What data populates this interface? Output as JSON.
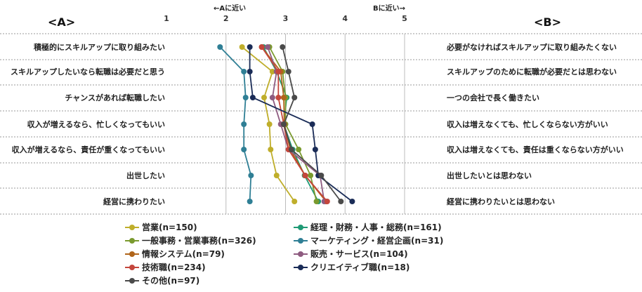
{
  "chart_data": {
    "type": "line",
    "left_header": "<A>",
    "right_header": "<B>",
    "direction_a": "←Aに近い",
    "direction_b": "Bに近い→",
    "xlim": [
      1,
      5
    ],
    "x_ticks": [
      "1",
      "2",
      "3",
      "4",
      "5"
    ],
    "left_labels": [
      "積極的にスキルアップに取り組みたい",
      "スキルアップしたいなら転職は必要だと思う",
      "チャンスがあれば転職したい",
      "収入が増えるなら、忙しくなってもいい",
      "収入が増えるなら、責任が重くなってもいい",
      "出世したい",
      "経営に携わりたい"
    ],
    "right_labels": [
      "必要がなければスキルアップに取り組みたくない",
      "スキルアップのために転職が必要だとは思わない",
      "一つの会社で長く働きたい",
      "収入は増えなくても、忙しくならない方がいい",
      "収入は増えなくても、責任は重くならない方がいい",
      "出世したいとは思わない",
      "経営に携わりたいとは思わない"
    ],
    "series": [
      {
        "name": "営業(n=150)",
        "color": "#bfae2b",
        "values": [
          2.27,
          2.78,
          2.64,
          2.73,
          2.75,
          2.85,
          3.15
        ]
      },
      {
        "name": "経理・財務・人事・総務(n=161)",
        "color": "#1f9a75",
        "values": [
          2.63,
          2.85,
          3.02,
          2.97,
          3.12,
          3.32,
          3.55
        ]
      },
      {
        "name": "一般事務・営業事務(n=326)",
        "color": "#7a9a2e",
        "values": [
          2.73,
          2.95,
          3.0,
          3.0,
          3.22,
          3.42,
          3.52
        ]
      },
      {
        "name": "マーケティング・経営企画(n=31)",
        "color": "#2f7f95",
        "values": [
          1.9,
          2.3,
          2.33,
          2.3,
          2.3,
          2.42,
          2.4
        ]
      },
      {
        "name": "情報システム(n=79)",
        "color": "#b0651a",
        "values": [
          2.6,
          2.92,
          2.97,
          2.98,
          3.08,
          3.33,
          3.68
        ]
      },
      {
        "name": "販売・サービス(n=104)",
        "color": "#8e5b80",
        "values": [
          2.7,
          2.85,
          2.78,
          2.92,
          3.05,
          3.58,
          3.65
        ]
      },
      {
        "name": "技術職(n=234)",
        "color": "#c4463c",
        "values": [
          2.6,
          2.88,
          2.88,
          2.97,
          3.05,
          3.33,
          3.7
        ]
      },
      {
        "name": "クリエイティブ職(n=18)",
        "color": "#1a2c57",
        "values": [
          2.4,
          2.4,
          2.45,
          3.45,
          3.5,
          3.55,
          4.12
        ]
      },
      {
        "name": "その他(n=97)",
        "color": "#4a4a4a",
        "values": [
          2.95,
          3.05,
          3.15,
          2.97,
          3.1,
          3.6,
          3.93
        ]
      }
    ],
    "legend_placement": "bottom"
  }
}
